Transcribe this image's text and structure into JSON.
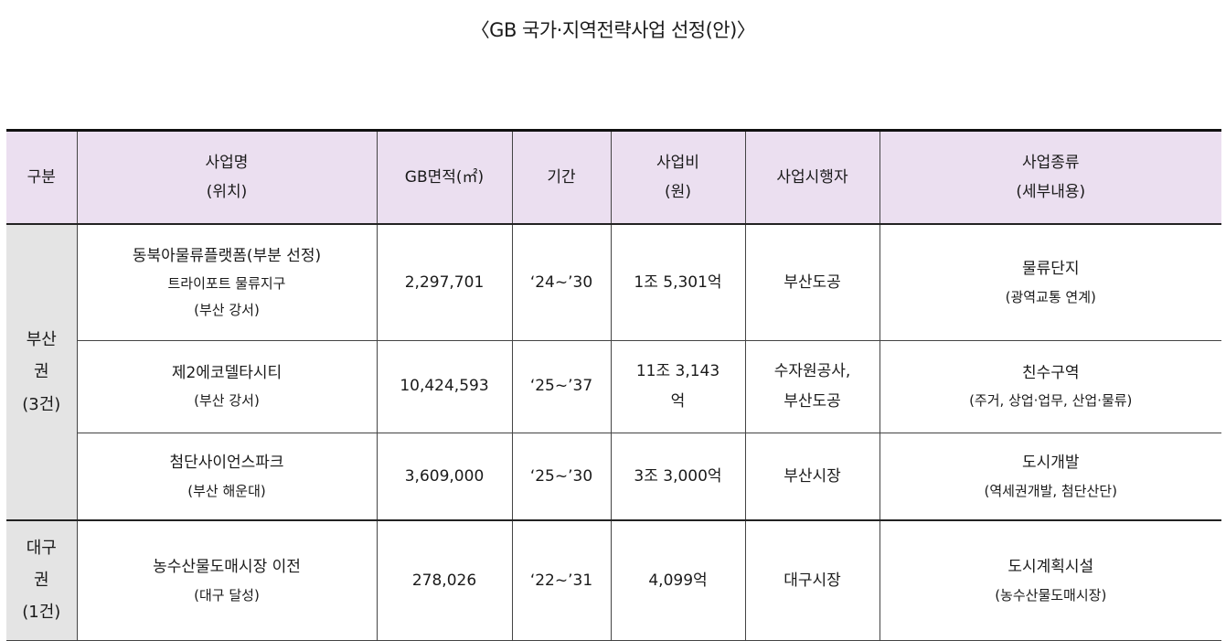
{
  "title": "〈GB 국가·지역전략사업 선정(안)〉",
  "header": {
    "region": "구분",
    "project_name": "사업명",
    "project_location": "(위치)",
    "gb_area": "GB면적(㎡)",
    "period": "기간",
    "cost": "사업비",
    "cost_unit": "(원)",
    "operator": "사업시행자",
    "type": "사업종류",
    "type_detail": "(세부내용)"
  },
  "regions": [
    {
      "line1": "부산",
      "line2": "권",
      "line3": "(3건)"
    },
    {
      "line1": "대구",
      "line2": "권",
      "line3": "(1건)"
    }
  ],
  "rows": [
    {
      "name": "동북아물류플랫폼(부분 선정)",
      "name_sub": "트라이포트 물류지구",
      "location": "(부산 강서)",
      "area": "2,297,701",
      "period": "‘24~’30",
      "cost": "1조 5,301억",
      "operator": "부산도공",
      "type": "물류단지",
      "type_detail": "(광역교통 연계)"
    },
    {
      "name": "제2에코델타시티",
      "location": "(부산 강서)",
      "area": "10,424,593",
      "period": "‘25~’37",
      "cost_line1": "11조 3,143",
      "cost_line2": "억",
      "operator_line1": "수자원공사,",
      "operator_line2": "부산도공",
      "type": "친수구역",
      "type_detail": "(주거, 상업·업무, 산업·물류)"
    },
    {
      "name": "첨단사이언스파크",
      "location": "(부산 해운대)",
      "area": "3,609,000",
      "period": "‘25~’30",
      "cost": "3조 3,000억",
      "operator": "부산시장",
      "type": "도시개발",
      "type_detail": "(역세권개발, 첨단산단)"
    },
    {
      "name": "농수산물도매시장 이전",
      "location": "(대구 달성)",
      "area": "278,026",
      "period": "‘22~’31",
      "cost": "4,099억",
      "operator": "대구시장",
      "type": "도시계획시설",
      "type_detail": "(농수산물도매시장)"
    }
  ]
}
